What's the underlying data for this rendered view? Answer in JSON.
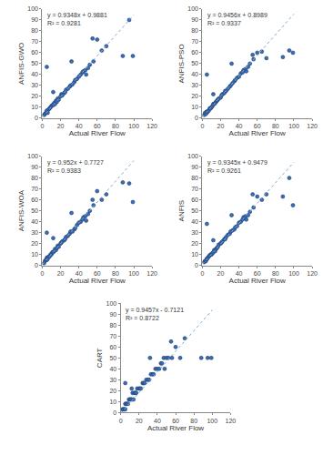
{
  "chart_data": [
    {
      "type": "scatter",
      "x_label": "Actual River Flow",
      "y_label": "ANFIS-GWO",
      "x": [
        2,
        3,
        4,
        5,
        5,
        6,
        7,
        8,
        9,
        10,
        11,
        12,
        13,
        14,
        15,
        16,
        17,
        18,
        20,
        21,
        22,
        24,
        25,
        26,
        28,
        30,
        31,
        33,
        35,
        36,
        38,
        40,
        42,
        44,
        45,
        47,
        50,
        52,
        55,
        56,
        60,
        65,
        70,
        88,
        95,
        99,
        5,
        32,
        48,
        12
      ],
      "values": [
        3,
        4,
        5,
        6,
        7,
        5,
        8,
        9,
        10,
        11,
        12,
        12,
        14,
        13,
        16,
        15,
        18,
        17,
        20,
        22,
        21,
        23,
        24,
        26,
        27,
        29,
        30,
        31,
        33,
        35,
        36,
        38,
        40,
        42,
        43,
        44,
        46,
        49,
        73,
        52,
        72,
        62,
        66,
        57,
        90,
        57,
        47,
        52,
        40,
        24
      ],
      "trendline": {
        "slope": 0.9348,
        "intercept": 0.9881,
        "x": [
          0,
          100
        ]
      },
      "annotations": [
        "y = 0.9348x + 0.9881",
        "R² = 0.9281"
      ],
      "color": "#3a6cb5",
      "marker": "circle",
      "grid": false,
      "xlim": [
        0,
        120
      ],
      "xticks": [
        0,
        20,
        40,
        60,
        80,
        100,
        120
      ],
      "ylim": [
        0,
        100
      ],
      "yticks": [
        0,
        10,
        20,
        30,
        40,
        50,
        60,
        70,
        80,
        90,
        100
      ]
    },
    {
      "type": "scatter",
      "x_label": "Actual River Flow",
      "y_label": "ANFIS-PSO",
      "x": [
        2,
        3,
        4,
        5,
        5,
        6,
        7,
        8,
        9,
        10,
        11,
        12,
        13,
        14,
        15,
        16,
        17,
        18,
        20,
        21,
        22,
        24,
        25,
        26,
        28,
        30,
        31,
        33,
        35,
        36,
        38,
        40,
        42,
        44,
        45,
        47,
        50,
        52,
        55,
        56,
        60,
        65,
        70,
        88,
        95,
        99,
        5,
        32,
        48,
        12
      ],
      "values": [
        3,
        5,
        4,
        6,
        6,
        6,
        7,
        9,
        9,
        10,
        11,
        13,
        13,
        14,
        15,
        16,
        17,
        18,
        19,
        21,
        22,
        23,
        25,
        25,
        27,
        29,
        30,
        32,
        34,
        35,
        37,
        38,
        41,
        42,
        44,
        45,
        47,
        50,
        58,
        54,
        60,
        61,
        55,
        56,
        62,
        60,
        40,
        50,
        43,
        22
      ],
      "trendline": {
        "slope": 0.9456,
        "intercept": 0.8989,
        "x": [
          0,
          100
        ]
      },
      "annotations": [
        "y = 0.9456x + 0.8989",
        "R² = 0.9337"
      ],
      "color": "#3a6cb5",
      "marker": "circle",
      "grid": false,
      "xlim": [
        0,
        120
      ],
      "xticks": [
        0,
        20,
        40,
        60,
        80,
        100,
        120
      ],
      "ylim": [
        0,
        100
      ],
      "yticks": [
        0,
        10,
        20,
        30,
        40,
        50,
        60,
        70,
        80,
        90,
        100
      ]
    },
    {
      "type": "scatter",
      "x_label": "Actual River Flow",
      "y_label": "ANFIS-WOA",
      "x": [
        2,
        3,
        4,
        5,
        5,
        6,
        7,
        8,
        9,
        10,
        11,
        12,
        13,
        14,
        15,
        16,
        17,
        18,
        20,
        21,
        22,
        24,
        25,
        26,
        28,
        30,
        31,
        33,
        35,
        36,
        38,
        40,
        42,
        44,
        45,
        47,
        50,
        52,
        55,
        56,
        60,
        65,
        70,
        88,
        95,
        99,
        5,
        32,
        48,
        12
      ],
      "values": [
        2,
        4,
        5,
        5,
        7,
        6,
        8,
        8,
        10,
        10,
        12,
        12,
        13,
        15,
        14,
        16,
        18,
        17,
        20,
        21,
        22,
        23,
        24,
        26,
        27,
        29,
        31,
        31,
        33,
        34,
        37,
        39,
        40,
        42,
        44,
        45,
        47,
        50,
        60,
        55,
        68,
        60,
        65,
        76,
        75,
        58,
        30,
        48,
        41,
        25
      ],
      "trendline": {
        "slope": 0.952,
        "intercept": 0.7727,
        "x": [
          0,
          100
        ]
      },
      "annotations": [
        "y = 0.952x + 0.7727",
        "R² = 0.9383"
      ],
      "color": "#3a6cb5",
      "marker": "circle",
      "grid": false,
      "xlim": [
        0,
        120
      ],
      "xticks": [
        0,
        20,
        40,
        60,
        80,
        100,
        120
      ],
      "ylim": [
        0,
        100
      ],
      "yticks": [
        0,
        10,
        20,
        30,
        40,
        50,
        60,
        70,
        80,
        90,
        100
      ]
    },
    {
      "type": "scatter",
      "x_label": "Actual River Flow",
      "y_label": "ANFIS",
      "x": [
        2,
        3,
        4,
        5,
        5,
        6,
        7,
        8,
        9,
        10,
        11,
        12,
        13,
        14,
        15,
        16,
        17,
        18,
        20,
        21,
        22,
        24,
        25,
        26,
        28,
        30,
        31,
        33,
        35,
        36,
        38,
        40,
        42,
        44,
        45,
        47,
        50,
        52,
        55,
        56,
        60,
        65,
        70,
        88,
        95,
        99,
        5,
        32,
        48,
        12
      ],
      "values": [
        3,
        4,
        4,
        6,
        6,
        7,
        8,
        9,
        10,
        10,
        11,
        12,
        14,
        13,
        15,
        16,
        17,
        19,
        20,
        21,
        22,
        24,
        24,
        26,
        28,
        29,
        31,
        32,
        33,
        35,
        36,
        39,
        40,
        42,
        44,
        45,
        46,
        49,
        65,
        53,
        63,
        60,
        65,
        63,
        80,
        55,
        38,
        46,
        42,
        23
      ],
      "trendline": {
        "slope": 0.9345,
        "intercept": 0.9479,
        "x": [
          0,
          100
        ]
      },
      "annotations": [
        "y = 0.9345x + 0.9479",
        "R² = 0.9261"
      ],
      "color": "#3a6cb5",
      "marker": "circle",
      "grid": false,
      "xlim": [
        0,
        120
      ],
      "xticks": [
        0,
        20,
        40,
        60,
        80,
        100,
        120
      ],
      "ylim": [
        0,
        100
      ],
      "yticks": [
        0,
        10,
        20,
        30,
        40,
        50,
        60,
        70,
        80,
        90,
        100
      ]
    },
    {
      "type": "scatter",
      "x_label": "Actual River Flow",
      "y_label": "CART",
      "x": [
        2,
        3,
        4,
        5,
        5,
        6,
        7,
        8,
        9,
        10,
        11,
        12,
        13,
        14,
        15,
        16,
        17,
        18,
        20,
        21,
        22,
        24,
        25,
        26,
        28,
        30,
        31,
        33,
        35,
        36,
        38,
        40,
        42,
        44,
        45,
        47,
        50,
        52,
        55,
        56,
        60,
        65,
        70,
        88,
        95,
        99,
        5,
        32,
        48,
        12
      ],
      "values": [
        3,
        3,
        3,
        8,
        3,
        8,
        8,
        8,
        12,
        12,
        12,
        12,
        18,
        12,
        18,
        18,
        18,
        22,
        22,
        22,
        22,
        27,
        27,
        27,
        30,
        30,
        30,
        35,
        35,
        35,
        40,
        40,
        40,
        45,
        45,
        50,
        50,
        50,
        65,
        50,
        60,
        50,
        68,
        50,
        50,
        50,
        27,
        50,
        40,
        22
      ],
      "trendline": {
        "slope": 0.9457,
        "intercept": -0.7121,
        "x": [
          0,
          100
        ]
      },
      "annotations": [
        "y = 0.9457x - 0.7121",
        "R² = 0.8722"
      ],
      "color": "#3a6cb5",
      "marker": "circle",
      "grid": false,
      "xlim": [
        0,
        120
      ],
      "xticks": [
        0,
        20,
        40,
        60,
        80,
        100,
        120
      ],
      "ylim": [
        0,
        100
      ],
      "yticks": [
        0,
        10,
        20,
        30,
        40,
        50,
        60,
        70,
        80,
        90,
        100
      ]
    }
  ]
}
